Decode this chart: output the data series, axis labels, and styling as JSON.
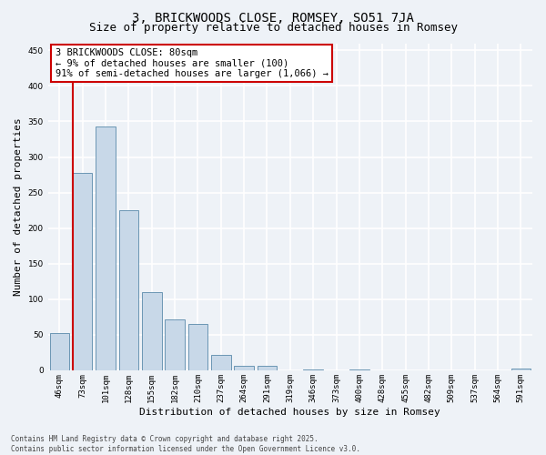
{
  "title": "3, BRICKWOODS CLOSE, ROMSEY, SO51 7JA",
  "subtitle": "Size of property relative to detached houses in Romsey",
  "xlabel": "Distribution of detached houses by size in Romsey",
  "ylabel": "Number of detached properties",
  "categories": [
    "46sqm",
    "73sqm",
    "101sqm",
    "128sqm",
    "155sqm",
    "182sqm",
    "210sqm",
    "237sqm",
    "264sqm",
    "291sqm",
    "319sqm",
    "346sqm",
    "373sqm",
    "400sqm",
    "428sqm",
    "455sqm",
    "482sqm",
    "509sqm",
    "537sqm",
    "564sqm",
    "591sqm"
  ],
  "values": [
    52,
    278,
    343,
    225,
    110,
    72,
    65,
    22,
    6,
    6,
    0,
    1,
    0,
    1,
    0,
    0,
    0,
    0,
    0,
    0,
    2
  ],
  "bar_color": "#c8d8e8",
  "bar_edge_color": "#5a8aaa",
  "vline_color": "#cc0000",
  "vline_pos": 0.575,
  "annotation_box_text": "3 BRICKWOODS CLOSE: 80sqm\n← 9% of detached houses are smaller (100)\n91% of semi-detached houses are larger (1,066) →",
  "ylim": [
    0,
    460
  ],
  "yticks": [
    0,
    50,
    100,
    150,
    200,
    250,
    300,
    350,
    400,
    450
  ],
  "background_color": "#eef2f7",
  "grid_color": "#ffffff",
  "footnote": "Contains HM Land Registry data © Crown copyright and database right 2025.\nContains public sector information licensed under the Open Government Licence v3.0.",
  "title_fontsize": 10,
  "subtitle_fontsize": 9,
  "axis_label_fontsize": 8,
  "tick_fontsize": 6.5,
  "annotation_fontsize": 7.5,
  "footnote_fontsize": 5.5
}
